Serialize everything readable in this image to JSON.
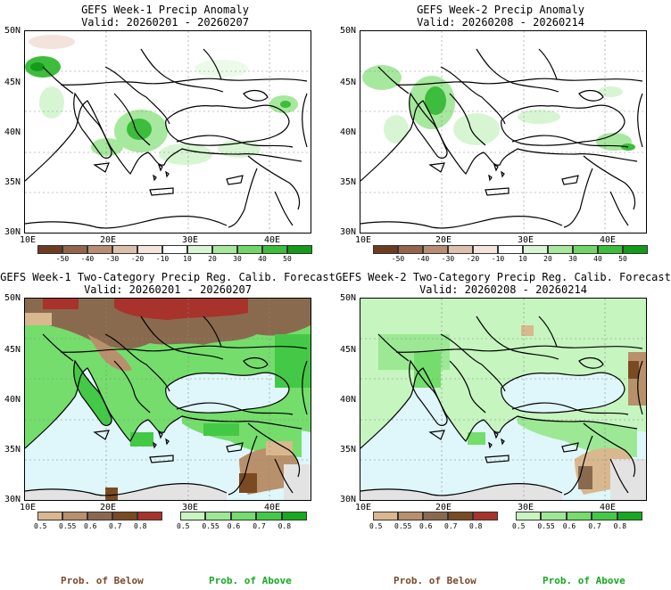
{
  "colors": {
    "sea": "#dff6fb",
    "land": "#ffffff",
    "lightgreen": "#a8eea0",
    "green": "#55d35a",
    "darkgreen": "#1d9c2a",
    "tan": "#cfa57c",
    "brown": "#7a4a2a",
    "darkred": "#a22a2a",
    "gray": "#e3e3e3"
  },
  "panels": [
    {
      "title_line1": "GEFS Week-1 Precip Anomaly",
      "title_line2": "Valid: 20260201 - 20260207",
      "colorbar": {
        "labels": [
          "-50",
          "-40",
          "-30",
          "-20",
          "-10",
          "10",
          "20",
          "30",
          "40",
          "50"
        ],
        "colors": [
          "#6b3b22",
          "#93664c",
          "#b88d76",
          "#dcc0ad",
          "#f2e4dc",
          "#ffffff",
          "#d7f5d3",
          "#a6e89d",
          "#70d668",
          "#3cbd3b",
          "#139b1a"
        ]
      }
    },
    {
      "title_line1": "GEFS Week-2 Precip Anomaly",
      "title_line2": "Valid: 20260208 - 20260214",
      "colorbar": {
        "labels": [
          "-50",
          "-40",
          "-30",
          "-20",
          "-10",
          "10",
          "20",
          "30",
          "40",
          "50"
        ],
        "colors": [
          "#6b3b22",
          "#93664c",
          "#b88d76",
          "#dcc0ad",
          "#f2e4dc",
          "#ffffff",
          "#d7f5d3",
          "#a6e89d",
          "#70d668",
          "#3cbd3b",
          "#139b1a"
        ]
      }
    },
    {
      "title_line1": "GEFS Week-1 Two-Category Precip Reg. Calib. Forecast",
      "title_line2": "Valid: 20260201 - 20260207"
    },
    {
      "title_line1": "GEFS Week-2 Two-Category Precip Reg. Calib. Forecast",
      "title_line2": "Valid: 20260208 - 20260214"
    }
  ],
  "axes": {
    "lat_labels": [
      "50N",
      "45N",
      "40N",
      "35N",
      "30N"
    ],
    "lon_labels": [
      "10E",
      "20E",
      "30E",
      "40E"
    ]
  },
  "prob_bars": {
    "below": {
      "labels": [
        "0.5",
        "0.55",
        "0.6",
        "0.7",
        "0.8"
      ],
      "colors": [
        "#d9b88f",
        "#b8906b",
        "#8a6a4e",
        "#7a4a22",
        "#a8322c"
      ]
    },
    "above": {
      "labels": [
        "0.5",
        "0.55",
        "0.6",
        "0.7",
        "0.8"
      ],
      "colors": [
        "#c6f5bf",
        "#9ce894",
        "#74dd6c",
        "#43c946",
        "#17a91f"
      ]
    }
  },
  "footer": {
    "below_label": "Prob. of Below",
    "above_label": "Prob. of Above",
    "below_color": "#7a4a2a",
    "above_color": "#17a91f"
  }
}
